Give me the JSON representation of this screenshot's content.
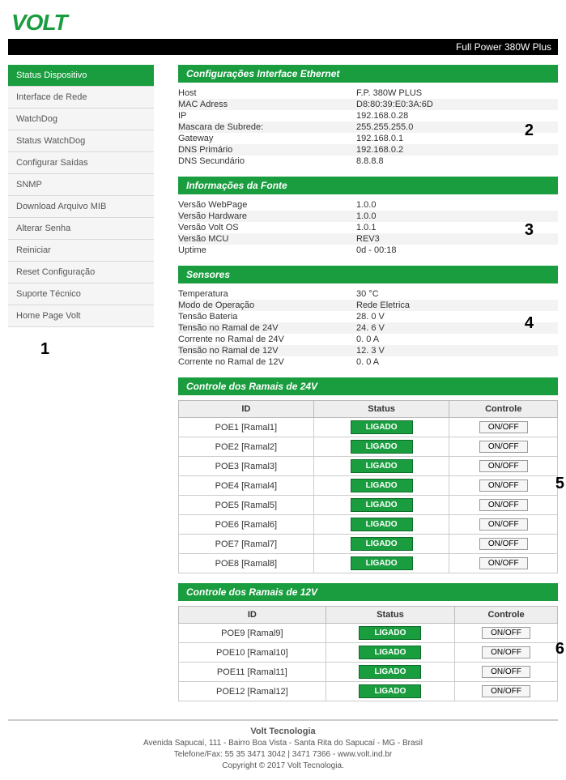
{
  "brand": "VOLT",
  "product_title": "Full Power 380W Plus",
  "annotations": [
    "1",
    "2",
    "3",
    "4",
    "5",
    "6"
  ],
  "sidebar": {
    "items": [
      {
        "label": "Status Dispositivo",
        "active": true
      },
      {
        "label": "Interface de Rede",
        "active": false
      },
      {
        "label": "WatchDog",
        "active": false
      },
      {
        "label": "Status WatchDog",
        "active": false
      },
      {
        "label": "Configurar Saídas",
        "active": false
      },
      {
        "label": "SNMP",
        "active": false
      },
      {
        "label": "Download Arquivo MIB",
        "active": false
      },
      {
        "label": "Alterar Senha",
        "active": false
      },
      {
        "label": "Reiniciar",
        "active": false
      },
      {
        "label": "Reset Configuração",
        "active": false
      },
      {
        "label": "Suporte Técnico",
        "active": false
      },
      {
        "label": "Home Page Volt",
        "active": false
      }
    ]
  },
  "sections": {
    "eth": {
      "title": "Configurações Interface Ethernet",
      "rows": [
        {
          "k": "Host",
          "v": "F.P. 380W PLUS"
        },
        {
          "k": "MAC Adress",
          "v": "D8:80:39:E0:3A:6D"
        },
        {
          "k": "IP",
          "v": "192.168.0.28"
        },
        {
          "k": "Mascara de Subrede:",
          "v": "255.255.255.0"
        },
        {
          "k": "Gateway",
          "v": "192.168.0.1"
        },
        {
          "k": "DNS Primário",
          "v": "192.168.0.2"
        },
        {
          "k": "DNS Secundário",
          "v": "8.8.8.8"
        }
      ]
    },
    "fonte": {
      "title": "Informações da Fonte",
      "rows": [
        {
          "k": "Versão WebPage",
          "v": "1.0.0"
        },
        {
          "k": "Versão Hardware",
          "v": "1.0.0"
        },
        {
          "k": "Versão Volt OS",
          "v": "1.0.1"
        },
        {
          "k": "Versão MCU",
          "v": "REV3"
        },
        {
          "k": "Uptime",
          "v": "0d - 00:18"
        }
      ]
    },
    "sensores": {
      "title": "Sensores",
      "rows": [
        {
          "k": "Temperatura",
          "v": "30 °C"
        },
        {
          "k": "Modo de Operação",
          "v": "Rede Eletrica"
        },
        {
          "k": "Tensão Bateria",
          "v": "28. 0 V"
        },
        {
          "k": "Tensão no Ramal de 24V",
          "v": "24. 6 V"
        },
        {
          "k": "Corrente no Ramal de 24V",
          "v": "0. 0 A"
        },
        {
          "k": "Tensão no Ramal de 12V",
          "v": "12. 3 V"
        },
        {
          "k": "Corrente no Ramal de 12V",
          "v": "0. 0 A"
        }
      ]
    },
    "ramais24": {
      "title": "Controle dos Ramais de 24V",
      "headers": [
        "ID",
        "Status",
        "Controle"
      ],
      "rows": [
        {
          "id": "POE1 [Ramal1]",
          "status": "LIGADO",
          "btn": "ON/OFF"
        },
        {
          "id": "POE2 [Ramal2]",
          "status": "LIGADO",
          "btn": "ON/OFF"
        },
        {
          "id": "POE3 [Ramal3]",
          "status": "LIGADO",
          "btn": "ON/OFF"
        },
        {
          "id": "POE4 [Ramal4]",
          "status": "LIGADO",
          "btn": "ON/OFF"
        },
        {
          "id": "POE5 [Ramal5]",
          "status": "LIGADO",
          "btn": "ON/OFF"
        },
        {
          "id": "POE6 [Ramal6]",
          "status": "LIGADO",
          "btn": "ON/OFF"
        },
        {
          "id": "POE7 [Ramal7]",
          "status": "LIGADO",
          "btn": "ON/OFF"
        },
        {
          "id": "POE8 [Ramal8]",
          "status": "LIGADO",
          "btn": "ON/OFF"
        }
      ]
    },
    "ramais12": {
      "title": "Controle dos Ramais de 12V",
      "headers": [
        "ID",
        "Status",
        "Controle"
      ],
      "rows": [
        {
          "id": "POE9 [Ramal9]",
          "status": "LIGADO",
          "btn": "ON/OFF"
        },
        {
          "id": "POE10 [Ramal10]",
          "status": "LIGADO",
          "btn": "ON/OFF"
        },
        {
          "id": "POE11 [Ramal11]",
          "status": "LIGADO",
          "btn": "ON/OFF"
        },
        {
          "id": "POE12 [Ramal12]",
          "status": "LIGADO",
          "btn": "ON/OFF"
        }
      ]
    }
  },
  "footer": {
    "company": "Volt Tecnologia",
    "address": "Avenida Sapucaí, 111 - Bairro Boa Vista - Santa Rita do Sapucaí - MG - Brasil",
    "phone": "Telefone/Fax: 55 35 3471 3042 | 3471 7366 - www.volt.ind.br",
    "copyright": "Copyright © 2017 Volt Tecnologia."
  },
  "colors": {
    "brand_green": "#1a9d3f",
    "black": "#000000",
    "grey_row": "#f3f3f3"
  }
}
